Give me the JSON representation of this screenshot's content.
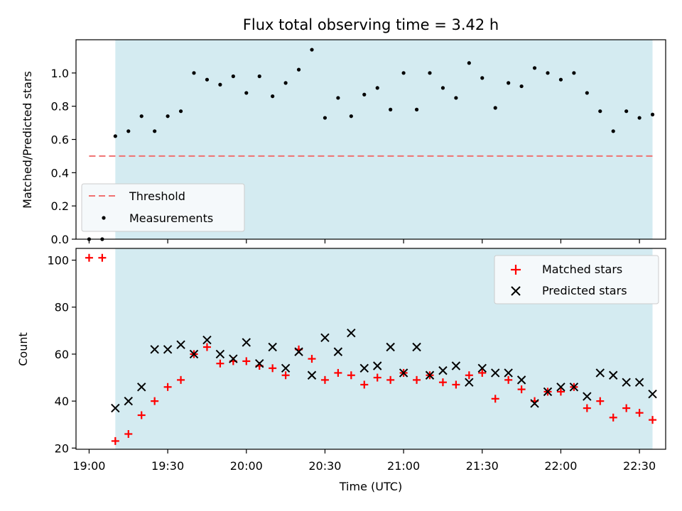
{
  "chart_data": {
    "type": "scatter",
    "title": "Flux total observing time = 3.42 h",
    "xlabel": "Time (UTC)",
    "x_ticks": [
      "19:00",
      "19:30",
      "20:00",
      "20:30",
      "21:00",
      "21:30",
      "22:00",
      "22:30"
    ],
    "x_range": [
      "18:55",
      "22:40"
    ],
    "observing_window": [
      "19:10",
      "22:35"
    ],
    "colors": {
      "window": "#d4ebf1",
      "threshold": "#f07070",
      "measurements": "#000000",
      "matched": "#ff0000",
      "predicted": "#000000"
    },
    "top": {
      "ylabel": "Matched/Predicted stars",
      "ylim": [
        0,
        1.2
      ],
      "y_ticks": [
        "0.0",
        "0.2",
        "0.4",
        "0.6",
        "0.8",
        "1.0"
      ],
      "threshold": {
        "value": 0.5,
        "x_range": [
          "19:00",
          "22:35"
        ]
      },
      "legend": {
        "position": "lower-left",
        "entries": [
          "Threshold",
          "Measurements"
        ]
      },
      "measurements": [
        {
          "x": "19:00",
          "y": 0.0
        },
        {
          "x": "19:05",
          "y": 0.0
        },
        {
          "x": "19:10",
          "y": 0.62
        },
        {
          "x": "19:15",
          "y": 0.65
        },
        {
          "x": "19:20",
          "y": 0.74
        },
        {
          "x": "19:25",
          "y": 0.65
        },
        {
          "x": "19:30",
          "y": 0.74
        },
        {
          "x": "19:35",
          "y": 0.77
        },
        {
          "x": "19:40",
          "y": 1.0
        },
        {
          "x": "19:45",
          "y": 0.96
        },
        {
          "x": "19:50",
          "y": 0.93
        },
        {
          "x": "19:55",
          "y": 0.98
        },
        {
          "x": "20:00",
          "y": 0.88
        },
        {
          "x": "20:05",
          "y": 0.98
        },
        {
          "x": "20:10",
          "y": 0.86
        },
        {
          "x": "20:15",
          "y": 0.94
        },
        {
          "x": "20:20",
          "y": 1.02
        },
        {
          "x": "20:25",
          "y": 1.14
        },
        {
          "x": "20:30",
          "y": 0.73
        },
        {
          "x": "20:35",
          "y": 0.85
        },
        {
          "x": "20:40",
          "y": 0.74
        },
        {
          "x": "20:45",
          "y": 0.87
        },
        {
          "x": "20:50",
          "y": 0.91
        },
        {
          "x": "20:55",
          "y": 0.78
        },
        {
          "x": "21:00",
          "y": 1.0
        },
        {
          "x": "21:05",
          "y": 0.78
        },
        {
          "x": "21:10",
          "y": 1.0
        },
        {
          "x": "21:15",
          "y": 0.91
        },
        {
          "x": "21:20",
          "y": 0.85
        },
        {
          "x": "21:25",
          "y": 1.06
        },
        {
          "x": "21:30",
          "y": 0.97
        },
        {
          "x": "21:35",
          "y": 0.79
        },
        {
          "x": "21:40",
          "y": 0.94
        },
        {
          "x": "21:45",
          "y": 0.92
        },
        {
          "x": "21:50",
          "y": 1.03
        },
        {
          "x": "21:55",
          "y": 1.0
        },
        {
          "x": "22:00",
          "y": 0.96
        },
        {
          "x": "22:05",
          "y": 1.0
        },
        {
          "x": "22:10",
          "y": 0.88
        },
        {
          "x": "22:15",
          "y": 0.77
        },
        {
          "x": "22:20",
          "y": 0.65
        },
        {
          "x": "22:25",
          "y": 0.77
        },
        {
          "x": "22:30",
          "y": 0.73
        },
        {
          "x": "22:35",
          "y": 0.75
        }
      ]
    },
    "bottom": {
      "ylabel": "Count",
      "ylim": [
        19.5,
        105
      ],
      "y_ticks": [
        "20",
        "40",
        "60",
        "80",
        "100"
      ],
      "legend": {
        "position": "top-right",
        "entries": [
          "Matched stars",
          "Predicted stars"
        ]
      },
      "matched": [
        {
          "x": "19:00",
          "y": 101
        },
        {
          "x": "19:05",
          "y": 101
        },
        {
          "x": "19:10",
          "y": 23
        },
        {
          "x": "19:15",
          "y": 26
        },
        {
          "x": "19:20",
          "y": 34
        },
        {
          "x": "19:25",
          "y": 40
        },
        {
          "x": "19:30",
          "y": 46
        },
        {
          "x": "19:35",
          "y": 49
        },
        {
          "x": "19:40",
          "y": 60
        },
        {
          "x": "19:45",
          "y": 63
        },
        {
          "x": "19:50",
          "y": 56
        },
        {
          "x": "19:55",
          "y": 57
        },
        {
          "x": "20:00",
          "y": 57
        },
        {
          "x": "20:05",
          "y": 55
        },
        {
          "x": "20:10",
          "y": 54
        },
        {
          "x": "20:15",
          "y": 51
        },
        {
          "x": "20:20",
          "y": 62
        },
        {
          "x": "20:25",
          "y": 58
        },
        {
          "x": "20:30",
          "y": 49
        },
        {
          "x": "20:35",
          "y": 52
        },
        {
          "x": "20:40",
          "y": 51
        },
        {
          "x": "20:45",
          "y": 47
        },
        {
          "x": "20:50",
          "y": 50
        },
        {
          "x": "20:55",
          "y": 49
        },
        {
          "x": "21:00",
          "y": 52
        },
        {
          "x": "21:05",
          "y": 49
        },
        {
          "x": "21:10",
          "y": 51
        },
        {
          "x": "21:15",
          "y": 48
        },
        {
          "x": "21:20",
          "y": 47
        },
        {
          "x": "21:25",
          "y": 51
        },
        {
          "x": "21:30",
          "y": 52
        },
        {
          "x": "21:35",
          "y": 41
        },
        {
          "x": "21:40",
          "y": 49
        },
        {
          "x": "21:45",
          "y": 45
        },
        {
          "x": "21:50",
          "y": 40
        },
        {
          "x": "21:55",
          "y": 44
        },
        {
          "x": "22:00",
          "y": 44
        },
        {
          "x": "22:05",
          "y": 46
        },
        {
          "x": "22:10",
          "y": 37
        },
        {
          "x": "22:15",
          "y": 40
        },
        {
          "x": "22:20",
          "y": 33
        },
        {
          "x": "22:25",
          "y": 37
        },
        {
          "x": "22:30",
          "y": 35
        },
        {
          "x": "22:35",
          "y": 32
        }
      ],
      "predicted": [
        {
          "x": "19:10",
          "y": 37
        },
        {
          "x": "19:15",
          "y": 40
        },
        {
          "x": "19:20",
          "y": 46
        },
        {
          "x": "19:25",
          "y": 62
        },
        {
          "x": "19:30",
          "y": 62
        },
        {
          "x": "19:35",
          "y": 64
        },
        {
          "x": "19:40",
          "y": 60
        },
        {
          "x": "19:45",
          "y": 66
        },
        {
          "x": "19:50",
          "y": 60
        },
        {
          "x": "19:55",
          "y": 58
        },
        {
          "x": "20:00",
          "y": 65
        },
        {
          "x": "20:05",
          "y": 56
        },
        {
          "x": "20:10",
          "y": 63
        },
        {
          "x": "20:15",
          "y": 54
        },
        {
          "x": "20:20",
          "y": 61
        },
        {
          "x": "20:25",
          "y": 51
        },
        {
          "x": "20:30",
          "y": 67
        },
        {
          "x": "20:35",
          "y": 61
        },
        {
          "x": "20:40",
          "y": 69
        },
        {
          "x": "20:45",
          "y": 54
        },
        {
          "x": "20:50",
          "y": 55
        },
        {
          "x": "20:55",
          "y": 63
        },
        {
          "x": "21:00",
          "y": 52
        },
        {
          "x": "21:05",
          "y": 63
        },
        {
          "x": "21:10",
          "y": 51
        },
        {
          "x": "21:15",
          "y": 53
        },
        {
          "x": "21:20",
          "y": 55
        },
        {
          "x": "21:25",
          "y": 48
        },
        {
          "x": "21:30",
          "y": 54
        },
        {
          "x": "21:35",
          "y": 52
        },
        {
          "x": "21:40",
          "y": 52
        },
        {
          "x": "21:45",
          "y": 49
        },
        {
          "x": "21:50",
          "y": 39
        },
        {
          "x": "21:55",
          "y": 44
        },
        {
          "x": "22:00",
          "y": 46
        },
        {
          "x": "22:05",
          "y": 46
        },
        {
          "x": "22:10",
          "y": 42
        },
        {
          "x": "22:15",
          "y": 52
        },
        {
          "x": "22:20",
          "y": 51
        },
        {
          "x": "22:25",
          "y": 48
        },
        {
          "x": "22:30",
          "y": 48
        },
        {
          "x": "22:35",
          "y": 43
        }
      ]
    }
  }
}
